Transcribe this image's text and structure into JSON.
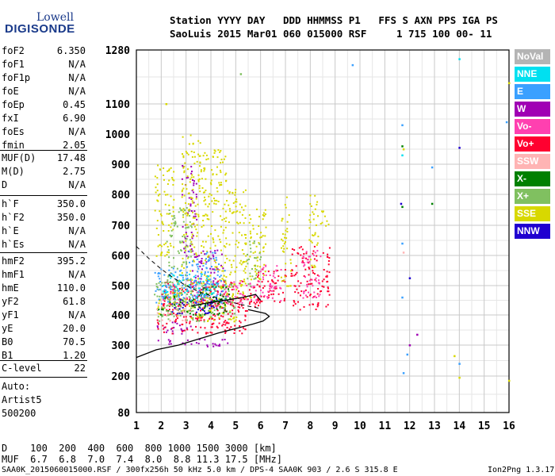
{
  "header": {
    "line1": "Station YYYY DAY   DDD HHMMSS P1   FFS S AXN PPS IGA PS",
    "line2": "SaoLuis 2015 Mar01 060 015000 RSF     1 715 100 00- 11"
  },
  "logo": {
    "top": "Lowell",
    "bottom": "DIGISONDE"
  },
  "params_group1": [
    {
      "k": "foF2",
      "v": "6.350"
    },
    {
      "k": "foF1",
      "v": "N/A"
    },
    {
      "k": "foF1p",
      "v": "N/A"
    },
    {
      "k": "foE",
      "v": "N/A"
    },
    {
      "k": "foEp",
      "v": "0.45"
    },
    {
      "k": "fxI",
      "v": "6.90"
    },
    {
      "k": "foEs",
      "v": "N/A"
    },
    {
      "k": "fmin",
      "v": "2.05"
    }
  ],
  "params_group2": [
    {
      "k": "MUF(D)",
      "v": "17.48"
    },
    {
      "k": "M(D)",
      "v": "2.75"
    },
    {
      "k": "D",
      "v": "N/A"
    }
  ],
  "params_group3": [
    {
      "k": "h`F",
      "v": "350.0"
    },
    {
      "k": "h`F2",
      "v": "350.0"
    },
    {
      "k": "h`E",
      "v": "N/A"
    },
    {
      "k": "h`Es",
      "v": "N/A"
    }
  ],
  "params_group4": [
    {
      "k": "hmF2",
      "v": "395.2"
    },
    {
      "k": "hmF1",
      "v": "N/A"
    },
    {
      "k": "hmE",
      "v": "110.0"
    },
    {
      "k": "yF2",
      "v": "61.8"
    },
    {
      "k": "yF1",
      "v": "N/A"
    },
    {
      "k": "yE",
      "v": "20.0"
    },
    {
      "k": "B0",
      "v": "70.5"
    },
    {
      "k": "B1",
      "v": "1.20"
    }
  ],
  "params_group5": [
    {
      "k": "C-level",
      "v": "22"
    }
  ],
  "auto": [
    "Auto:",
    "Artist5",
    "500200"
  ],
  "legend": [
    {
      "label": "NoVal",
      "color": "#b4b4b4"
    },
    {
      "label": "NNE",
      "color": "#00e0f0"
    },
    {
      "label": "E",
      "color": "#3aa0ff"
    },
    {
      "label": "W",
      "color": "#a000b4"
    },
    {
      "label": "Vo-",
      "color": "#ff40b0"
    },
    {
      "label": "Vo+",
      "color": "#ff0030"
    },
    {
      "label": "SSW",
      "color": "#ffb4b4"
    },
    {
      "label": "X-",
      "color": "#008000"
    },
    {
      "label": "X+",
      "color": "#80c060"
    },
    {
      "label": "SSE",
      "color": "#d8d800"
    },
    {
      "label": "NNW",
      "color": "#2000d0"
    }
  ],
  "muf_table": {
    "line1": "D    100  200  400  600  800 1000 1500 3000 [km]",
    "line2": "MUF  6.7  6.8  7.0  7.4  8.0  8.8 11.3 17.5 [MHz]"
  },
  "footer": {
    "left": "SAA0K_2015060015000.RSF / 300fx256h 50 kHz 5.0 km / DPS-4 SAA0K 903 / 2.6 S 315.8 E",
    "right": "Ion2Png 1.3.17"
  },
  "chart_data": {
    "type": "scatter",
    "title": "",
    "xlabel": "",
    "ylabel": "",
    "x_ticks": [
      1,
      2,
      3,
      4,
      5,
      6,
      7,
      8,
      9,
      10,
      11,
      12,
      13,
      14,
      15,
      16
    ],
    "y_ticks": [
      80,
      200,
      300,
      400,
      500,
      600,
      700,
      800,
      900,
      1000,
      1100,
      1280
    ],
    "xlim": [
      1,
      16
    ],
    "ylim": [
      80,
      1280
    ],
    "y_scale": "nonlinear",
    "grid": true,
    "series": [
      {
        "color": "#a000b4",
        "clusters": [
          [
            1.7,
            2.6,
            300,
            320
          ],
          [
            2.6,
            4.7,
            295,
            325
          ],
          [
            1.8,
            3.3,
            340,
            380
          ],
          [
            3.2,
            4.5,
            420,
            620
          ],
          [
            2.8,
            3.4,
            600,
            900
          ]
        ]
      },
      {
        "color": "#ff0030",
        "clusters": [
          [
            1.8,
            5.5,
            340,
            460
          ],
          [
            2.0,
            6.2,
            430,
            520
          ],
          [
            5.8,
            7.0,
            440,
            560
          ],
          [
            7.2,
            8.8,
            420,
            640
          ],
          [
            3.3,
            4.8,
            360,
            420
          ]
        ]
      },
      {
        "color": "#ff40b0",
        "clusters": [
          [
            2.0,
            5.8,
            440,
            520
          ],
          [
            5.8,
            6.8,
            450,
            580
          ],
          [
            7.6,
            8.4,
            460,
            620
          ]
        ]
      },
      {
        "color": "#d8d800",
        "clusters": [
          [
            1.7,
            2.5,
            600,
            900
          ],
          [
            2.8,
            3.6,
            500,
            1000
          ],
          [
            3.6,
            4.6,
            480,
            950
          ],
          [
            4.5,
            5.4,
            460,
            820
          ],
          [
            5.5,
            6.2,
            500,
            760
          ],
          [
            1.8,
            5.0,
            380,
            480
          ],
          [
            6.8,
            7.2,
            500,
            800
          ],
          [
            7.9,
            8.3,
            550,
            800
          ],
          [
            8.3,
            8.8,
            700,
            760
          ]
        ]
      },
      {
        "color": "#80c060",
        "clusters": [
          [
            1.7,
            5.0,
            380,
            520
          ],
          [
            2.2,
            3.2,
            420,
            760
          ],
          [
            5.4,
            6.0,
            500,
            650
          ]
        ]
      },
      {
        "color": "#008000",
        "clusters": [
          [
            1.8,
            4.6,
            400,
            470
          ],
          [
            3.5,
            4.8,
            430,
            500
          ]
        ]
      },
      {
        "color": "#3aa0ff",
        "clusters": [
          [
            1.7,
            4.6,
            440,
            560
          ],
          [
            3.0,
            4.3,
            460,
            620
          ]
        ]
      },
      {
        "color": "#00e0f0",
        "clusters": [
          [
            2.0,
            4.2,
            470,
            540
          ]
        ]
      },
      {
        "color": "#2000d0",
        "clusters": [
          [
            2.4,
            4.2,
            400,
            460
          ]
        ]
      },
      {
        "color": "#ffb4b4",
        "clusters": [
          [
            1.8,
            3.0,
            380,
            440
          ]
        ]
      }
    ],
    "sparse_points": [
      {
        "x": 9.7,
        "y": 1230,
        "color": "#3aa0ff"
      },
      {
        "x": 14.0,
        "y": 1250,
        "color": "#00e0f0"
      },
      {
        "x": 11.7,
        "y": 1030,
        "color": "#3aa0ff"
      },
      {
        "x": 11.7,
        "y": 960,
        "color": "#008000"
      },
      {
        "x": 11.75,
        "y": 950,
        "color": "#d8d800"
      },
      {
        "x": 11.7,
        "y": 930,
        "color": "#00e0f0"
      },
      {
        "x": 14.0,
        "y": 955,
        "color": "#2000d0"
      },
      {
        "x": 12.9,
        "y": 890,
        "color": "#3aa0ff"
      },
      {
        "x": 11.65,
        "y": 770,
        "color": "#2000d0"
      },
      {
        "x": 11.7,
        "y": 760,
        "color": "#008000"
      },
      {
        "x": 12.9,
        "y": 770,
        "color": "#008000"
      },
      {
        "x": 11.7,
        "y": 640,
        "color": "#3aa0ff"
      },
      {
        "x": 11.75,
        "y": 610,
        "color": "#ffb4b4"
      },
      {
        "x": 12.0,
        "y": 525,
        "color": "#2000d0"
      },
      {
        "x": 11.7,
        "y": 460,
        "color": "#3aa0ff"
      },
      {
        "x": 12.3,
        "y": 335,
        "color": "#a000b4"
      },
      {
        "x": 12.0,
        "y": 300,
        "color": "#a000b4"
      },
      {
        "x": 11.9,
        "y": 270,
        "color": "#3aa0ff"
      },
      {
        "x": 11.75,
        "y": 210,
        "color": "#3aa0ff"
      },
      {
        "x": 13.8,
        "y": 265,
        "color": "#d8d800"
      },
      {
        "x": 14.0,
        "y": 240,
        "color": "#3aa0ff"
      },
      {
        "x": 14.0,
        "y": 195,
        "color": "#d8d800"
      },
      {
        "x": 15.9,
        "y": 1040,
        "color": "#3aa0ff"
      },
      {
        "x": 16.0,
        "y": 1170,
        "color": "#d8d800"
      },
      {
        "x": 16.0,
        "y": 185,
        "color": "#d8d800"
      },
      {
        "x": 5.2,
        "y": 1200,
        "color": "#80c060"
      },
      {
        "x": 2.2,
        "y": 1100,
        "color": "#d8d800"
      },
      {
        "x": 5.6,
        "y": 460,
        "color": "#d8d800"
      }
    ],
    "profile_curve": [
      [
        1.0,
        260
      ],
      [
        1.8,
        285
      ],
      [
        2.7,
        300
      ],
      [
        3.5,
        320
      ],
      [
        4.3,
        340
      ],
      [
        5.0,
        355
      ],
      [
        5.7,
        370
      ],
      [
        6.1,
        380
      ],
      [
        6.35,
        395
      ],
      [
        6.2,
        405
      ],
      [
        5.5,
        418
      ]
    ],
    "profile_curve2": [
      [
        3.2,
        430
      ],
      [
        3.8,
        440
      ],
      [
        4.6,
        450
      ],
      [
        5.3,
        460
      ],
      [
        5.8,
        470
      ],
      [
        6.0,
        450
      ]
    ],
    "dashed_curve": [
      [
        1.0,
        630
      ],
      [
        1.5,
        590
      ],
      [
        2.0,
        555
      ],
      [
        2.5,
        525
      ],
      [
        3.0,
        500
      ],
      [
        3.5,
        480
      ],
      [
        4.0,
        465
      ],
      [
        4.5,
        450
      ],
      [
        5.0,
        440
      ],
      [
        5.5,
        430
      ],
      [
        6.0,
        422
      ]
    ]
  }
}
